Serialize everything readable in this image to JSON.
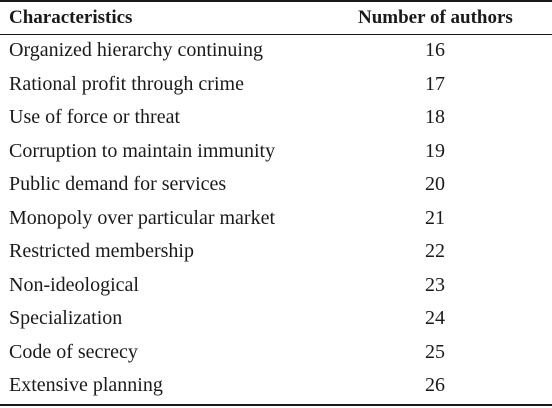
{
  "table": {
    "headers": {
      "characteristics": "Characteristics",
      "number_of_authors": "Number of authors"
    },
    "rows": [
      {
        "characteristic": "Organized hierarchy continuing",
        "authors": "16"
      },
      {
        "characteristic": "Rational profit through crime",
        "authors": "17"
      },
      {
        "characteristic": "Use of force or threat",
        "authors": "18"
      },
      {
        "characteristic": "Corruption to maintain immunity",
        "authors": "19"
      },
      {
        "characteristic": "Public demand for services",
        "authors": "20"
      },
      {
        "characteristic": "Monopoly over particular market",
        "authors": "21"
      },
      {
        "characteristic": "Restricted membership",
        "authors": "22"
      },
      {
        "characteristic": "Non-ideological",
        "authors": "23"
      },
      {
        "characteristic": "Specialization",
        "authors": "24"
      },
      {
        "characteristic": "Code of secrecy",
        "authors": "25"
      },
      {
        "characteristic": "Extensive planning",
        "authors": "26"
      }
    ]
  }
}
